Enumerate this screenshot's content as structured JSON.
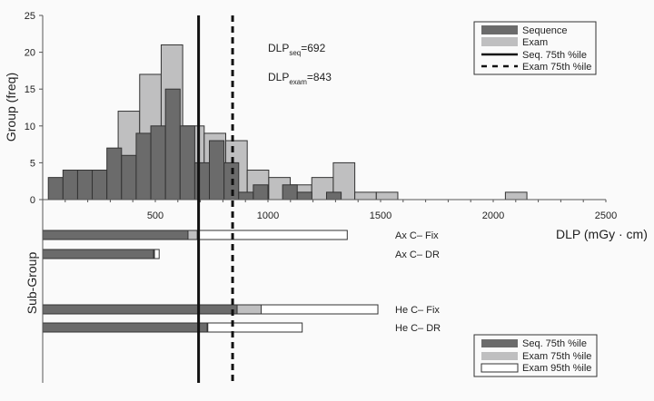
{
  "colors": {
    "sequence": "#6b6b6b",
    "exam": "#bfbfc0",
    "exam95": "#ffffff",
    "line": "#111111"
  },
  "chart_data": [
    {
      "type": "bar",
      "subtype": "overlaid histogram",
      "ylabel": "Group (freq)",
      "xlabel": "DLP (mGy · cm)",
      "xlim": [
        0,
        2500
      ],
      "ylim": [
        0,
        25
      ],
      "xticks": [
        500,
        1000,
        1500,
        2000,
        2500
      ],
      "yticks": [
        0,
        5,
        10,
        15,
        20,
        25
      ],
      "series": [
        {
          "name": "Exam",
          "bin_start": 335,
          "bin_width": 95.5,
          "values": [
            12,
            17,
            21,
            10,
            9,
            8,
            4,
            3,
            2,
            3,
            5,
            1,
            1,
            0,
            0,
            0,
            0,
            0,
            1
          ]
        },
        {
          "name": "Sequence",
          "bin_start": 25,
          "bin_width": 65,
          "values": [
            3,
            4,
            4,
            4,
            7,
            6,
            9,
            10,
            15,
            10,
            5,
            8,
            5,
            1,
            2,
            0,
            2,
            1,
            0,
            1
          ]
        }
      ],
      "reference_lines": [
        {
          "name": "Seq. 75th %ile",
          "value": 692,
          "style": "solid"
        },
        {
          "name": "Exam 75th %ile",
          "value": 843,
          "style": "dashed"
        }
      ],
      "annotations": [
        {
          "main": "DLP",
          "sub": "seq",
          "rest": "=692"
        },
        {
          "main": "DLP",
          "sub": "exam",
          "rest": "=843"
        }
      ],
      "legend": {
        "placement": "top-right",
        "items": [
          "Sequence",
          "Exam",
          "Seq. 75th %ile",
          "Exam 75th %ile"
        ]
      }
    },
    {
      "type": "bar",
      "subtype": "horizontal overlaid bars",
      "ylabel": "Sub-Group",
      "categories": [
        "Ax C– Fix",
        "Ax C– DR",
        "He C– Fix",
        "He C– DR"
      ],
      "series": [
        {
          "name": "Exam 95th %ile",
          "values": [
            1352,
            517,
            1488,
            1152
          ]
        },
        {
          "name": "Exam 75th %ile",
          "values": [
            686,
            496,
            970,
            733
          ]
        },
        {
          "name": "Seq. 75th %ile",
          "values": [
            645,
            492,
            863,
            730
          ]
        }
      ],
      "legend": {
        "placement": "bottom-right",
        "items": [
          "Seq. 75th %ile",
          "Exam 75th %ile",
          "Exam 95th %ile"
        ]
      }
    }
  ]
}
